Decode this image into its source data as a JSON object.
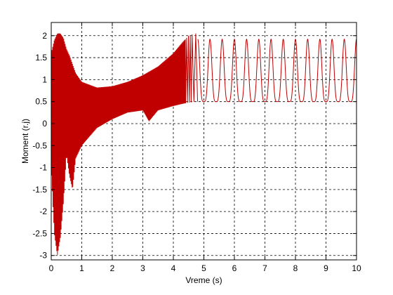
{
  "chart_data": {
    "type": "line",
    "title": "",
    "xlabel": "Vreme (s)",
    "ylabel": "Moment (r.j)",
    "xlim": [
      0,
      10
    ],
    "ylim": [
      -3.1,
      2.3
    ],
    "x_ticks": [
      0,
      1,
      2,
      3,
      4,
      5,
      6,
      7,
      8,
      9,
      10
    ],
    "x_tick_labels": [
      "0",
      "1",
      "2",
      "3",
      "4",
      "5",
      "6",
      "7",
      "8",
      "9",
      "10"
    ],
    "y_ticks": [
      -3,
      -2.5,
      -2,
      -1.5,
      -1,
      -0.5,
      0,
      0.5,
      1,
      1.5,
      2
    ],
    "y_tick_labels": [
      "-3",
      "-2.5",
      "-2",
      "-1.5",
      "-1",
      "-0.5",
      "0",
      "0.5",
      "1",
      "1.5",
      "2"
    ],
    "grid": true,
    "grid_style": "dashed",
    "line_color": "#c00000",
    "series": [
      {
        "description_of_shape": "",
        "upper_envelope": {
          "x": [
            0.0,
            0.1,
            0.2,
            0.3,
            0.4,
            0.5,
            0.6,
            0.7,
            0.8,
            1.0,
            1.5,
            2.0,
            2.5,
            3.0,
            3.5,
            4.0,
            4.3,
            4.5,
            4.7
          ],
          "y": [
            1.6,
            1.9,
            2.05,
            2.05,
            1.95,
            1.7,
            1.55,
            1.35,
            1.15,
            0.95,
            0.82,
            0.85,
            0.95,
            1.1,
            1.3,
            1.6,
            1.85,
            2.0,
            2.05
          ]
        },
        "lower_envelope": {
          "x": [
            0.0,
            0.1,
            0.2,
            0.3,
            0.4,
            0.5,
            0.6,
            0.7,
            0.8,
            1.0,
            1.5,
            2.0,
            2.5,
            3.0,
            3.2,
            3.5,
            4.0,
            4.3,
            4.7
          ],
          "y": [
            -1.0,
            -2.5,
            -3.0,
            -2.6,
            -1.8,
            -0.7,
            -1.2,
            -1.5,
            -0.8,
            -0.5,
            -0.1,
            0.1,
            0.25,
            0.3,
            0.05,
            0.3,
            0.4,
            0.45,
            0.5
          ]
        },
        "steady_state": {
          "x_start": 4.8,
          "x_end": 10.0,
          "period": 0.4,
          "min": 0.5,
          "max": 1.92
        }
      }
    ]
  }
}
